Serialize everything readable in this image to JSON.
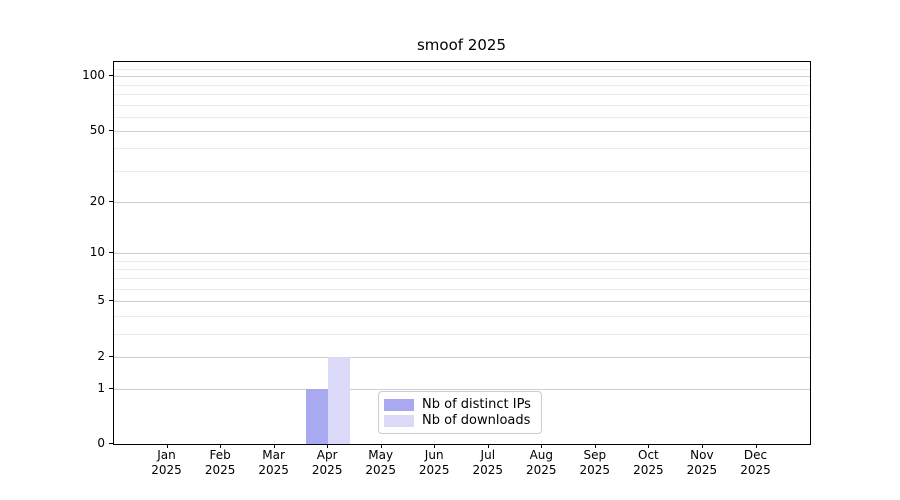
{
  "chart_data": {
    "type": "bar",
    "title": "smoof 2025",
    "months": [
      "Jan",
      "Feb",
      "Mar",
      "Apr",
      "May",
      "Jun",
      "Jul",
      "Aug",
      "Sep",
      "Oct",
      "Nov",
      "Dec"
    ],
    "year": "2025",
    "series": [
      {
        "name": "Nb of distinct IPs",
        "color": "#a9a9f2",
        "values": [
          0,
          0,
          0,
          1,
          0,
          0,
          0,
          0,
          0,
          0,
          0,
          0
        ]
      },
      {
        "name": "Nb of downloads",
        "color": "#dadaf8",
        "values": [
          0,
          0,
          0,
          2,
          0,
          0,
          0,
          0,
          0,
          0,
          0,
          0
        ]
      }
    ],
    "y_scale": "log10(1+x)",
    "y_ticks": [
      0,
      1,
      2,
      5,
      10,
      20,
      50,
      100
    ],
    "y_minor_ticks": [
      3,
      4,
      6,
      7,
      8,
      9,
      30,
      40,
      60,
      70,
      80,
      90,
      110
    ],
    "ylim": [
      0,
      120
    ],
    "xlabel": "",
    "ylabel": "",
    "grid": "horizontal-major-and-minor",
    "legend_position": "lower-center",
    "colors": {
      "grid_major": "#cfcfcf",
      "grid_minor": "#ebebeb",
      "spine": "#000000",
      "background": "#ffffff",
      "text": "#000000"
    }
  }
}
